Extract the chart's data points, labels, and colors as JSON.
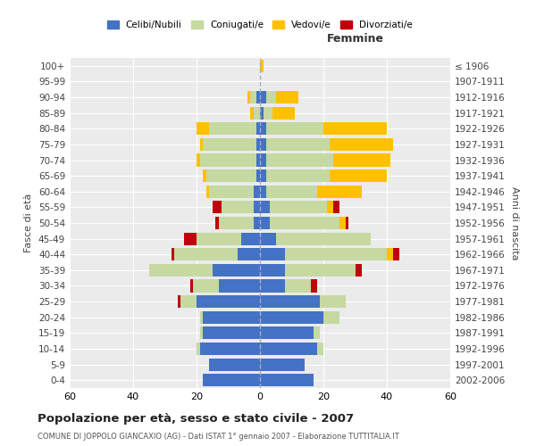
{
  "age_groups": [
    "0-4",
    "5-9",
    "10-14",
    "15-19",
    "20-24",
    "25-29",
    "30-34",
    "35-39",
    "40-44",
    "45-49",
    "50-54",
    "55-59",
    "60-64",
    "65-69",
    "70-74",
    "75-79",
    "80-84",
    "85-89",
    "90-94",
    "95-99",
    "100+"
  ],
  "birth_years": [
    "2002-2006",
    "1997-2001",
    "1992-1996",
    "1987-1991",
    "1982-1986",
    "1977-1981",
    "1972-1976",
    "1967-1971",
    "1962-1966",
    "1957-1961",
    "1952-1956",
    "1947-1951",
    "1942-1946",
    "1937-1941",
    "1932-1936",
    "1927-1931",
    "1922-1926",
    "1917-1921",
    "1912-1916",
    "1907-1911",
    "≤ 1906"
  ],
  "male": {
    "celibe": [
      18,
      16,
      19,
      18,
      18,
      20,
      13,
      15,
      7,
      6,
      2,
      2,
      2,
      1,
      1,
      1,
      1,
      0,
      1,
      0,
      0
    ],
    "coniugato": [
      0,
      0,
      1,
      1,
      1,
      5,
      8,
      20,
      20,
      14,
      11,
      10,
      14,
      16,
      18,
      17,
      15,
      2,
      2,
      0,
      0
    ],
    "vedovo": [
      0,
      0,
      0,
      0,
      0,
      0,
      0,
      0,
      0,
      0,
      0,
      0,
      1,
      1,
      1,
      1,
      4,
      1,
      1,
      0,
      0
    ],
    "divorziato": [
      0,
      0,
      0,
      0,
      0,
      1,
      1,
      0,
      1,
      4,
      1,
      3,
      0,
      0,
      0,
      0,
      0,
      0,
      0,
      0,
      0
    ]
  },
  "female": {
    "nubile": [
      17,
      14,
      18,
      17,
      20,
      19,
      8,
      8,
      8,
      5,
      3,
      3,
      2,
      2,
      2,
      2,
      2,
      1,
      2,
      0,
      0
    ],
    "coniugata": [
      0,
      0,
      2,
      2,
      5,
      8,
      8,
      22,
      32,
      30,
      22,
      18,
      16,
      20,
      21,
      20,
      18,
      3,
      3,
      0,
      0
    ],
    "vedova": [
      0,
      0,
      0,
      0,
      0,
      0,
      0,
      0,
      2,
      0,
      2,
      2,
      14,
      18,
      18,
      20,
      20,
      7,
      7,
      0,
      1
    ],
    "divorziata": [
      0,
      0,
      0,
      0,
      0,
      0,
      2,
      2,
      2,
      0,
      1,
      2,
      0,
      0,
      0,
      0,
      0,
      0,
      0,
      0,
      0
    ]
  },
  "colors": {
    "celibe": "#4472c4",
    "coniugato": "#c5d9a0",
    "vedovo": "#ffc000",
    "divorziato": "#c0000c"
  },
  "title": "Popolazione per età, sesso e stato civile - 2007",
  "subtitle": "COMUNE DI JOPPOLO GIANCAXIO (AG) - Dati ISTAT 1° gennaio 2007 - Elaborazione TUTTITALIA.IT",
  "xlabel_right": "Femmine",
  "ylabel_left": "Fasce di età",
  "ylabel_right": "Anni di nascita",
  "xlim": 60,
  "bg_color": "#ffffff",
  "plot_bg": "#ebebeb",
  "grid_color": "#ffffff",
  "legend_labels": [
    "Celibi/Nubili",
    "Coniugati/e",
    "Vedovi/e",
    "Divorziati/e"
  ]
}
